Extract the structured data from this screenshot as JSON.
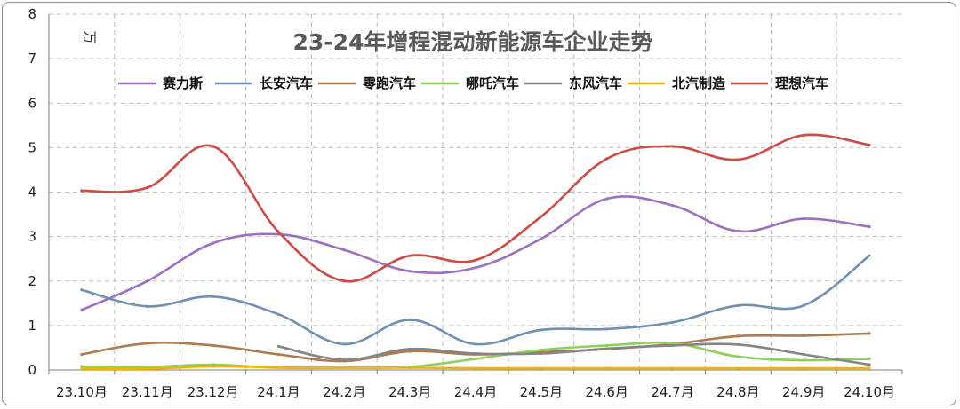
{
  "chart_data": {
    "type": "line",
    "title": "23-24年增程混动新能源车企业走势",
    "unit_label": "万",
    "categories": [
      "23.10月",
      "23.11月",
      "23.12月",
      "24.1月",
      "24.2月",
      "24.3月",
      "24.4月",
      "24.5月",
      "24.6月",
      "24.7月",
      "24.8月",
      "24.9月",
      "24.10月"
    ],
    "y_ticks": [
      "0",
      "1",
      "2",
      "3",
      "4",
      "5",
      "6",
      "7",
      "8"
    ],
    "ylim": [
      0,
      8
    ],
    "grid": true,
    "legend_position": "top",
    "series": [
      {
        "name": "赛力斯",
        "color": "#9c6fc1",
        "values": [
          1.35,
          2.0,
          2.85,
          3.05,
          2.7,
          2.22,
          2.3,
          2.95,
          3.85,
          3.7,
          3.12,
          3.4,
          3.22
        ]
      },
      {
        "name": "长安汽车",
        "color": "#6f8fb5",
        "values": [
          1.8,
          1.43,
          1.65,
          1.25,
          0.58,
          1.13,
          0.58,
          0.9,
          0.92,
          1.07,
          1.45,
          1.45,
          2.57
        ]
      },
      {
        "name": "零跑汽车",
        "color": "#b07a4f",
        "values": [
          0.35,
          0.6,
          0.55,
          0.35,
          0.2,
          0.42,
          0.35,
          0.4,
          0.47,
          0.58,
          0.76,
          0.77,
          0.82
        ]
      },
      {
        "name": "哪吒汽车",
        "color": "#8ccf5b",
        "values": [
          0.08,
          0.07,
          0.12,
          0.05,
          0.05,
          0.07,
          0.25,
          0.45,
          0.55,
          0.6,
          0.3,
          0.22,
          0.25
        ]
      },
      {
        "name": "东风汽车",
        "color": "#858585",
        "values": [
          null,
          null,
          null,
          0.53,
          0.23,
          0.47,
          0.37,
          0.37,
          0.48,
          0.55,
          0.57,
          0.35,
          0.12
        ]
      },
      {
        "name": "北汽制造",
        "color": "#f2b400",
        "values": [
          0.03,
          0.03,
          0.08,
          0.06,
          0.05,
          0.05,
          0.04,
          0.04,
          0.04,
          0.04,
          0.04,
          0.04,
          0.04
        ]
      },
      {
        "name": "理想汽车",
        "color": "#d04a43",
        "values": [
          4.03,
          4.1,
          5.03,
          3.1,
          2.0,
          2.57,
          2.47,
          3.45,
          4.75,
          5.03,
          4.73,
          5.28,
          5.06
        ]
      }
    ]
  }
}
